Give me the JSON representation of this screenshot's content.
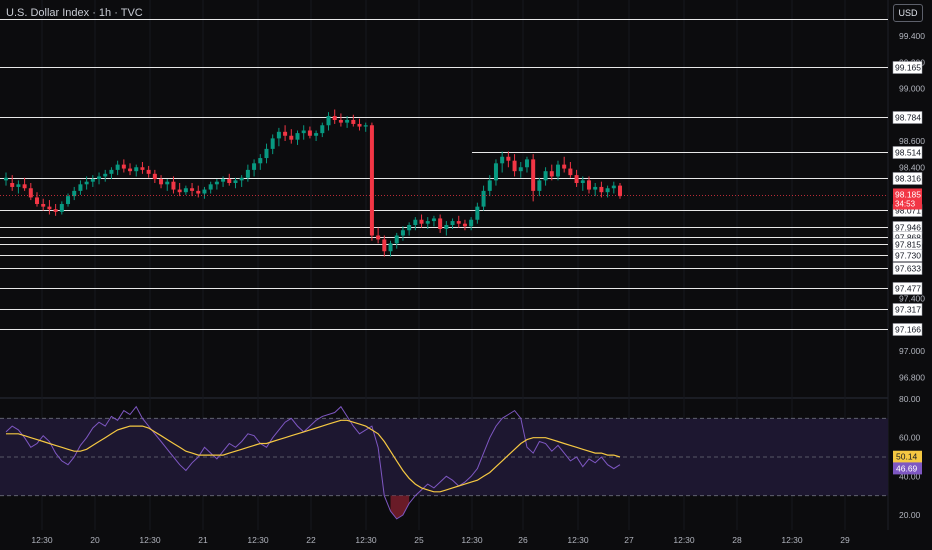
{
  "header": {
    "title": "U.S. Dollar Index · 1h · TVC",
    "currency_button": "USD"
  },
  "chart_data": [
    {
      "type": "candlestick",
      "title": "U.S. Dollar Index · 1h · TVC",
      "price_axis": {
        "ticks": [
          "99.400",
          "99.200",
          "99.000",
          "98.600",
          "98.400",
          "97.400",
          "97.000",
          "96.800"
        ],
        "range": [
          96.75,
          99.55
        ]
      },
      "current_price": {
        "value": "98.185",
        "countdown": "34:53",
        "color": "#f23645"
      },
      "horizontal_levels": [
        "99.165",
        "98.784",
        "98.514",
        "98.316",
        "98.071",
        "97.946",
        "97.868",
        "97.815",
        "97.730",
        "97.633",
        "97.477",
        "97.317",
        "97.166"
      ],
      "x_tick_labels": [
        "12:30",
        "20",
        "12:30",
        "21",
        "12:30",
        "22",
        "12:30",
        "25",
        "12:30",
        "26",
        "12:30",
        "27",
        "12:30",
        "28",
        "12:30",
        "29"
      ],
      "candles_ohlc_approx": [
        [
          98.3,
          98.36,
          98.26,
          98.32
        ],
        [
          98.28,
          98.34,
          98.22,
          98.25
        ],
        [
          98.25,
          98.3,
          98.2,
          98.27
        ],
        [
          98.27,
          98.32,
          98.22,
          98.24
        ],
        [
          98.24,
          98.28,
          98.15,
          98.17
        ],
        [
          98.17,
          98.21,
          98.1,
          98.12
        ],
        [
          98.12,
          98.16,
          98.07,
          98.1
        ],
        [
          98.1,
          98.15,
          98.04,
          98.08
        ],
        [
          98.08,
          98.12,
          98.03,
          98.06
        ],
        [
          98.06,
          98.14,
          98.04,
          98.12
        ],
        [
          98.12,
          98.2,
          98.1,
          98.18
        ],
        [
          98.18,
          98.25,
          98.15,
          98.22
        ],
        [
          98.22,
          98.3,
          98.19,
          98.27
        ],
        [
          98.27,
          98.33,
          98.23,
          98.29
        ],
        [
          98.29,
          98.34,
          98.25,
          98.31
        ],
        [
          98.31,
          98.36,
          98.27,
          98.33
        ],
        [
          98.33,
          98.38,
          98.29,
          98.35
        ],
        [
          98.35,
          98.4,
          98.31,
          98.38
        ],
        [
          98.38,
          98.45,
          98.34,
          98.42
        ],
        [
          98.42,
          98.46,
          98.36,
          98.39
        ],
        [
          98.39,
          98.43,
          98.34,
          98.37
        ],
        [
          98.37,
          98.42,
          98.33,
          98.4
        ],
        [
          98.4,
          98.44,
          98.35,
          98.38
        ],
        [
          98.38,
          98.41,
          98.32,
          98.35
        ],
        [
          98.35,
          98.38,
          98.28,
          98.31
        ],
        [
          98.31,
          98.34,
          98.24,
          98.27
        ],
        [
          98.27,
          98.31,
          98.22,
          98.29
        ],
        [
          98.29,
          98.33,
          98.2,
          98.23
        ],
        [
          98.23,
          98.28,
          98.18,
          98.21
        ],
        [
          98.21,
          98.26,
          98.19,
          98.24
        ],
        [
          98.24,
          98.28,
          98.18,
          98.22
        ],
        [
          98.22,
          98.26,
          98.17,
          98.2
        ],
        [
          98.2,
          98.25,
          98.16,
          98.23
        ],
        [
          98.23,
          98.29,
          98.2,
          98.27
        ],
        [
          98.27,
          98.31,
          98.23,
          98.29
        ],
        [
          98.29,
          98.33,
          98.25,
          98.31
        ],
        [
          98.31,
          98.35,
          98.26,
          98.28
        ],
        [
          98.28,
          98.32,
          98.24,
          98.3
        ],
        [
          98.3,
          98.34,
          98.25,
          98.32
        ],
        [
          98.32,
          98.42,
          98.29,
          98.38
        ],
        [
          98.38,
          98.46,
          98.33,
          98.43
        ],
        [
          98.43,
          98.5,
          98.38,
          98.47
        ],
        [
          98.47,
          98.58,
          98.43,
          98.54
        ],
        [
          98.54,
          98.65,
          98.5,
          98.62
        ],
        [
          98.62,
          98.7,
          98.56,
          98.67
        ],
        [
          98.67,
          98.72,
          98.6,
          98.64
        ],
        [
          98.64,
          98.69,
          98.58,
          98.61
        ],
        [
          98.61,
          98.68,
          98.57,
          98.66
        ],
        [
          98.66,
          98.72,
          98.61,
          98.68
        ],
        [
          98.68,
          98.71,
          98.62,
          98.64
        ],
        [
          98.64,
          98.68,
          98.6,
          98.66
        ],
        [
          98.66,
          98.74,
          98.63,
          98.72
        ],
        [
          98.72,
          98.82,
          98.68,
          98.79
        ],
        [
          98.79,
          98.84,
          98.73,
          98.76
        ],
        [
          98.76,
          98.81,
          98.71,
          98.74
        ],
        [
          98.74,
          98.79,
          98.7,
          98.76
        ],
        [
          98.76,
          98.8,
          98.71,
          98.73
        ],
        [
          98.73,
          98.77,
          98.68,
          98.71
        ],
        [
          98.71,
          98.74,
          98.67,
          98.72
        ],
        [
          98.72,
          98.74,
          97.84,
          97.88
        ],
        [
          97.88,
          97.94,
          97.82,
          97.85
        ],
        [
          97.85,
          97.88,
          97.72,
          97.76
        ],
        [
          97.76,
          97.84,
          97.72,
          97.82
        ],
        [
          97.82,
          97.9,
          97.78,
          97.88
        ],
        [
          97.88,
          97.95,
          97.84,
          97.92
        ],
        [
          97.92,
          97.98,
          97.88,
          97.96
        ],
        [
          97.96,
          98.02,
          97.92,
          98.0
        ],
        [
          98.0,
          98.04,
          97.94,
          97.97
        ],
        [
          97.97,
          98.02,
          97.93,
          97.99
        ],
        [
          97.99,
          98.03,
          97.95,
          98.01
        ],
        [
          98.01,
          98.04,
          97.9,
          97.93
        ],
        [
          97.93,
          97.99,
          97.88,
          97.96
        ],
        [
          97.96,
          98.01,
          97.93,
          97.99
        ],
        [
          97.99,
          98.03,
          97.94,
          97.97
        ],
        [
          97.97,
          98.0,
          97.92,
          97.95
        ],
        [
          97.95,
          98.02,
          97.92,
          98.0
        ],
        [
          98.0,
          98.13,
          97.97,
          98.1
        ],
        [
          98.1,
          98.26,
          98.07,
          98.22
        ],
        [
          98.22,
          98.34,
          98.18,
          98.3
        ],
        [
          98.3,
          98.46,
          98.26,
          98.43
        ],
        [
          98.43,
          98.52,
          98.36,
          98.48
        ],
        [
          98.48,
          98.52,
          98.4,
          98.45
        ],
        [
          98.45,
          98.5,
          98.33,
          98.37
        ],
        [
          98.37,
          98.44,
          98.32,
          98.4
        ],
        [
          98.4,
          98.48,
          98.36,
          98.46
        ],
        [
          98.46,
          98.5,
          98.14,
          98.22
        ],
        [
          98.22,
          98.32,
          98.18,
          98.3
        ],
        [
          98.3,
          98.4,
          98.26,
          98.37
        ],
        [
          98.37,
          98.42,
          98.3,
          98.33
        ],
        [
          98.33,
          98.45,
          98.3,
          98.42
        ],
        [
          98.42,
          98.48,
          98.36,
          98.39
        ],
        [
          98.39,
          98.44,
          98.32,
          98.34
        ],
        [
          98.34,
          98.38,
          98.25,
          98.28
        ],
        [
          98.28,
          98.33,
          98.22,
          98.3
        ],
        [
          98.3,
          98.33,
          98.2,
          98.23
        ],
        [
          98.23,
          98.28,
          98.18,
          98.25
        ],
        [
          98.25,
          98.29,
          98.17,
          98.21
        ],
        [
          98.21,
          98.26,
          98.17,
          98.24
        ],
        [
          98.24,
          98.29,
          98.2,
          98.26
        ],
        [
          98.26,
          98.28,
          98.16,
          98.18
        ]
      ],
      "up_color": "#089981",
      "down_color": "#f23645"
    },
    {
      "type": "line",
      "title": "",
      "y_ticks": [
        "80.00",
        "60.00",
        "40.00",
        "20.00"
      ],
      "y_range": [
        15,
        85
      ],
      "bands": [
        30,
        50,
        70
      ],
      "value_labels": {
        "ma": "50.14",
        "rsi": "46.69"
      },
      "series": [
        {
          "color": "#7e57c2",
          "values": [
            63,
            66,
            64,
            60,
            55,
            57,
            61,
            58,
            52,
            48,
            46,
            50,
            56,
            60,
            65,
            68,
            66,
            71,
            69,
            74,
            72,
            76,
            70,
            66,
            62,
            58,
            54,
            50,
            46,
            43,
            47,
            50,
            55,
            52,
            49,
            53,
            57,
            55,
            58,
            62,
            61,
            57,
            55,
            60,
            64,
            68,
            70,
            66,
            63,
            66,
            69,
            71,
            72,
            73,
            76,
            71,
            66,
            62,
            64,
            66,
            55,
            30,
            22,
            18,
            20,
            26,
            30,
            33,
            36,
            34,
            37,
            40,
            38,
            35,
            37,
            40,
            44,
            52,
            60,
            66,
            70,
            72,
            74,
            70,
            55,
            52,
            58,
            57,
            53,
            56,
            52,
            48,
            50,
            45,
            49,
            47,
            50,
            46,
            44,
            46
          ]
        },
        {
          "color": "#f5c842",
          "values": [
            62,
            62,
            62,
            61,
            60,
            59,
            58,
            57,
            56,
            55,
            54,
            53,
            53,
            54,
            56,
            58,
            60,
            62,
            64,
            65,
            66,
            66,
            66,
            65,
            63,
            61,
            59,
            57,
            55,
            53,
            52,
            51,
            51,
            51,
            51,
            51,
            52,
            53,
            54,
            55,
            56,
            57,
            57,
            58,
            59,
            60,
            61,
            62,
            63,
            64,
            65,
            66,
            67,
            68,
            69,
            69,
            68,
            67,
            66,
            64,
            62,
            58,
            53,
            48,
            43,
            39,
            36,
            34,
            33,
            32,
            32,
            33,
            34,
            35,
            36,
            37,
            38,
            40,
            42,
            45,
            48,
            51,
            54,
            57,
            59,
            60,
            60,
            60,
            59,
            58,
            57,
            56,
            55,
            54,
            53,
            52,
            52,
            51,
            51,
            50
          ]
        }
      ]
    }
  ]
}
